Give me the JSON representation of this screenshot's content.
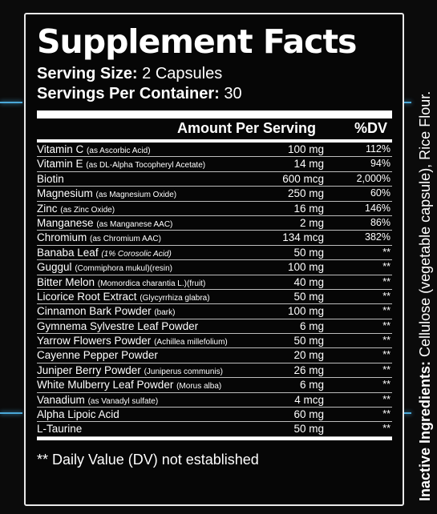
{
  "panel": {
    "title": "Supplement Facts",
    "serving_size_label": "Serving Size:",
    "serving_size_value": " 2 Capsules",
    "servings_per_container_label": "Servings Per Container:",
    "servings_per_container_value": " 30",
    "header": {
      "amount": "Amount Per Serving",
      "dv": "%DV"
    },
    "rows": [
      {
        "name": "Vitamin C",
        "sub": "(as Ascorbic Acid)",
        "amount": "100 mg",
        "dv": "112%"
      },
      {
        "name": "Vitamin E",
        "sub": "(as DL-Alpha Tocopheryl Acetate)",
        "amount": "14 mg",
        "dv": "94%"
      },
      {
        "name": "Biotin",
        "sub": "",
        "amount": "600 mcg",
        "dv": "2,000%"
      },
      {
        "name": "Magnesium",
        "sub": "(as Magnesium Oxide)",
        "amount": "250 mg",
        "dv": "60%"
      },
      {
        "name": "Zinc",
        "sub": "(as Zinc Oxide)",
        "amount": "16 mg",
        "dv": "146%"
      },
      {
        "name": "Manganese",
        "sub": "(as Manganese AAC)",
        "amount": "2 mg",
        "dv": "86%"
      },
      {
        "name": "Chromium",
        "sub": "(as Chromium AAC)",
        "amount": "134 mcg",
        "dv": "382%"
      },
      {
        "name": "Banaba Leaf",
        "sub": "(1% Corosolic Acid)",
        "amount": "50 mg",
        "dv": "**"
      },
      {
        "name": "Guggul",
        "sub": "(Commiphora mukul)(resin)",
        "amount": "100 mg",
        "dv": "**"
      },
      {
        "name": "Bitter Melon",
        "sub": "(Momordica charantia L.)(fruit)",
        "amount": "40 mg",
        "dv": "**"
      },
      {
        "name": "Licorice Root Extract",
        "sub": "(Glycyrrhiza glabra)",
        "amount": "50 mg",
        "dv": "**"
      },
      {
        "name": "Cinnamon Bark Powder",
        "sub": "(bark)",
        "amount": "100 mg",
        "dv": "**"
      },
      {
        "name": "Gymnema Sylvestre Leaf Powder",
        "sub": "",
        "amount": "6 mg",
        "dv": "**"
      },
      {
        "name": "Yarrow Flowers Powder",
        "sub": "(Achillea millefolium)",
        "amount": "50 mg",
        "dv": "**"
      },
      {
        "name": "Cayenne Pepper Powder",
        "sub": "",
        "amount": "20 mg",
        "dv": "**"
      },
      {
        "name": "Juniper Berry Powder",
        "sub": "(Juniperus communis)",
        "amount": "26 mg",
        "dv": "**"
      },
      {
        "name": "White Mulberry Leaf Powder",
        "sub": "(Morus alba)",
        "amount": "6 mg",
        "dv": "**"
      },
      {
        "name": "Vanadium",
        "sub": "(as Vanadyl sulfate)",
        "amount": "4 mcg",
        "dv": "**"
      },
      {
        "name": "Alpha Lipoic Acid",
        "sub": "",
        "amount": "60 mg",
        "dv": "**"
      },
      {
        "name": "L-Taurine",
        "sub": "",
        "amount": "50 mg",
        "dv": "**"
      }
    ],
    "footnote": "** Daily Value (DV) not established"
  },
  "side_text": {
    "label": "Inactive Ingredients:",
    "value": " Cellulose (vegetable capsule), Rice Flour."
  }
}
